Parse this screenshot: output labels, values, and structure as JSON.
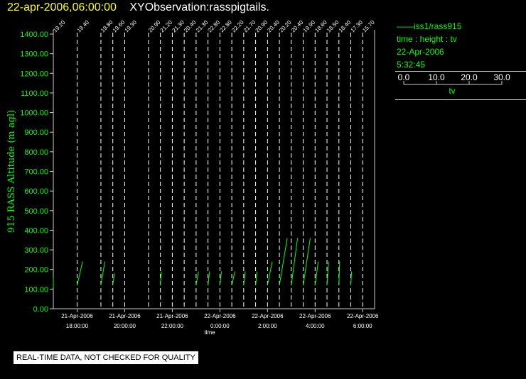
{
  "header": {
    "date": "22-apr-2006,06:00:00",
    "title": "XYObservation:rasspigtails."
  },
  "legend": {
    "series": "iss1/rass915",
    "axes": "time : height : tv",
    "date": "22-Apr-2006",
    "time": "5:32:45",
    "scale_ticks": [
      "0.0",
      "10.0",
      "20.0",
      "30.0"
    ],
    "scale_label": "tv"
  },
  "notice": "REAL-TIME DATA, NOT CHECKED FOR QUALITY",
  "colors": {
    "axis_text": "#00ff00",
    "data": "#00ff00",
    "background": "#000000",
    "frame": "#cccccc",
    "title_date": "#ffff00",
    "title": "#ffffff"
  },
  "chart_data": {
    "type": "line",
    "ylabel": "915 RASS Altitude (m agl)",
    "xlabel": "time",
    "ylim": [
      0,
      1400
    ],
    "yticks": [
      "0.00",
      "100.00",
      "200.00",
      "300.00",
      "400.00",
      "500.00",
      "600.00",
      "700.00",
      "800.00",
      "900.00",
      "1000.00",
      "1100.00",
      "1200.00",
      "1300.00",
      "1400.00"
    ],
    "xlim": [
      "2006-04-21 17:00",
      "2006-04-22 06:30"
    ],
    "xticks": [
      {
        "t": "2006-04-21 18:00",
        "date": "21-Apr-2006",
        "time": "18:00:00"
      },
      {
        "t": "2006-04-21 20:00",
        "date": "21-Apr-2006",
        "time": "20:00:00"
      },
      {
        "t": "2006-04-21 22:00",
        "date": "21-Apr-2006",
        "time": "22:00:00"
      },
      {
        "t": "2006-04-22 00:00",
        "date": "22-Apr-2006",
        "time": "0:00:00"
      },
      {
        "t": "2006-04-22 02:00",
        "date": "22-Apr-2006",
        "time": "2:00:00"
      },
      {
        "t": "2006-04-22 04:00",
        "date": "22-Apr-2006",
        "time": "4:00:00"
      },
      {
        "t": "2006-04-22 06:00",
        "date": "22-Apr-2006",
        "time": "6:00:00"
      }
    ],
    "profiles": [
      {
        "time": "2006-04-21 17:00",
        "label": "19.20",
        "tv_ext": 0.0,
        "bottom": 110,
        "top": 160
      },
      {
        "time": "2006-04-21 18:00",
        "label": "19.40",
        "tv_ext": 3.5,
        "bottom": 120,
        "top": 240
      },
      {
        "time": "2006-04-21 19:00",
        "label": "19.80",
        "tv_ext": 2.5,
        "bottom": 120,
        "top": 240
      },
      {
        "time": "2006-04-21 19:30",
        "label": "19.60",
        "tv_ext": 1.0,
        "bottom": 120,
        "top": 180
      },
      {
        "time": "2006-04-21 20:00",
        "label": "19.30",
        "tv_ext": null,
        "bottom": null,
        "top": null
      },
      {
        "time": "2006-04-21 21:00",
        "label": "20.90",
        "tv_ext": null,
        "bottom": null,
        "top": null
      },
      {
        "time": "2006-04-21 21:30",
        "label": "21.20",
        "tv_ext": 0.5,
        "bottom": 120,
        "top": 190
      },
      {
        "time": "2006-04-21 22:00",
        "label": "21.30",
        "tv_ext": null,
        "bottom": null,
        "top": null
      },
      {
        "time": "2006-04-21 22:30",
        "label": "20.40",
        "tv_ext": null,
        "bottom": null,
        "top": null
      },
      {
        "time": "2006-04-21 23:00",
        "label": "21.30",
        "tv_ext": 1.5,
        "bottom": 120,
        "top": 190
      },
      {
        "time": "2006-04-21 23:30",
        "label": "22.80",
        "tv_ext": 1.0,
        "bottom": 120,
        "top": 190
      },
      {
        "time": "2006-04-22 00:00",
        "label": "22.80",
        "tv_ext": 1.0,
        "bottom": 120,
        "top": 190
      },
      {
        "time": "2006-04-22 00:30",
        "label": "22.20",
        "tv_ext": 2.0,
        "bottom": 120,
        "top": 190
      },
      {
        "time": "2006-04-22 01:00",
        "label": "21.70",
        "tv_ext": 1.0,
        "bottom": 120,
        "top": 190
      },
      {
        "time": "2006-04-22 01:30",
        "label": "20.90",
        "tv_ext": 1.0,
        "bottom": 120,
        "top": 190
      },
      {
        "time": "2006-04-22 02:00",
        "label": "20.40",
        "tv_ext": 3.0,
        "bottom": 120,
        "top": 240
      },
      {
        "time": "2006-04-22 02:30",
        "label": "20.20",
        "tv_ext": 5.0,
        "bottom": 120,
        "top": 360
      },
      {
        "time": "2006-04-22 03:00",
        "label": "20.40",
        "tv_ext": 4.0,
        "bottom": 120,
        "top": 360
      },
      {
        "time": "2006-04-22 03:30",
        "label": "19.90",
        "tv_ext": 4.5,
        "bottom": 120,
        "top": 360
      },
      {
        "time": "2006-04-22 04:00",
        "label": "18.60",
        "tv_ext": 2.0,
        "bottom": 120,
        "top": 240
      },
      {
        "time": "2006-04-22 04:30",
        "label": "18.50",
        "tv_ext": 1.0,
        "bottom": 120,
        "top": 240
      },
      {
        "time": "2006-04-22 05:00",
        "label": "18.40",
        "tv_ext": 0.5,
        "bottom": 120,
        "top": 240
      },
      {
        "time": "2006-04-22 05:30",
        "label": "17.30",
        "tv_ext": 0.5,
        "bottom": 120,
        "top": 190
      },
      {
        "time": "2006-04-22 06:00",
        "label": "15.70",
        "tv_ext": null,
        "bottom": null,
        "top": null
      }
    ]
  }
}
